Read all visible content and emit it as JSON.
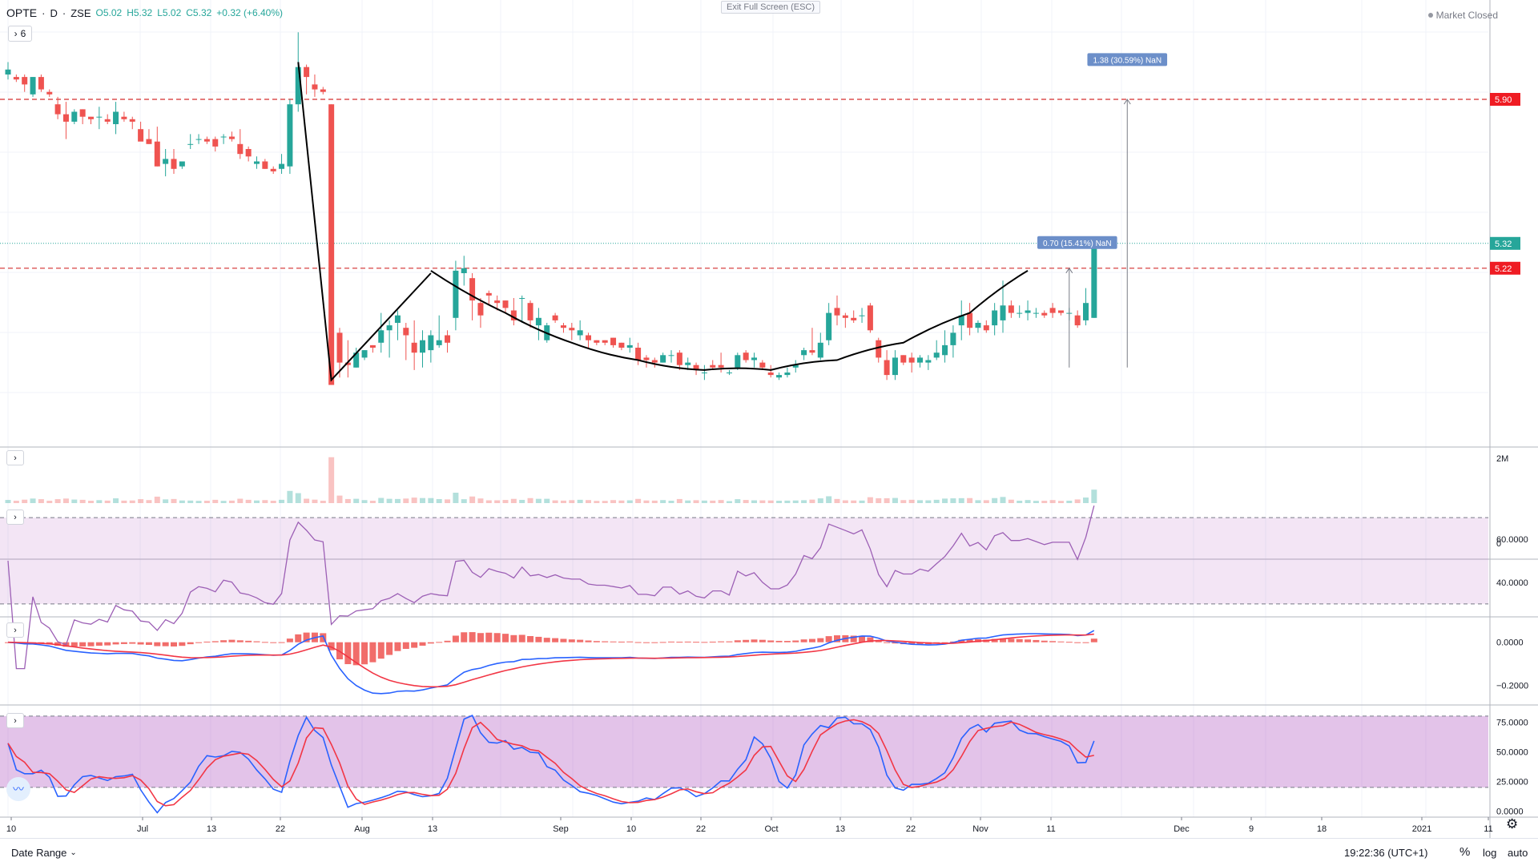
{
  "header": {
    "symbol": "OPTE",
    "interval": "D",
    "exchange": "ZSE",
    "open": "O5.02",
    "high": "H5.32",
    "low": "L5.02",
    "close": "C5.32",
    "change": "+0.32 (+6.40%)",
    "interval_box": "6",
    "exit_fullscreen": "Exit Full Screen (ESC)",
    "market_status": "Market Closed"
  },
  "colors": {
    "up": "#26a69a",
    "down": "#ef5350",
    "rsi": "#9c5fb5",
    "macd": "#2962ff",
    "signal": "#f23645"
  },
  "icons": [
    "chevron-right-icon",
    "chevron-down-icon",
    "settings-icon",
    "tradingview-logo-icon"
  ],
  "price_labels": {
    "level_high": "5.90",
    "current": "5.32",
    "level_mid": "5.22"
  },
  "measure_labels": {
    "big": "1.38 (30.59%) NaN",
    "small": "0.70 (15.41%) NaN"
  },
  "volume_axis": [
    "2M",
    "0"
  ],
  "rsi_axis": [
    "60.0000",
    "40.0000"
  ],
  "macd_axis": [
    "0.0000",
    "−0.2000"
  ],
  "stoch_axis": [
    "75.0000",
    "50.0000",
    "25.0000",
    "0.0000"
  ],
  "x_ticks": [
    "10",
    "Jul",
    "13",
    "22",
    "Aug",
    "13",
    "Sep",
    "10",
    "22",
    "Oct",
    "13",
    "22",
    "Nov",
    "11",
    "Dec",
    "9",
    "18",
    "2021",
    "11"
  ],
  "bottom": {
    "date_range": "Date Range",
    "clock": "19:22:36 (UTC+1)",
    "percent": "%",
    "log": "log",
    "auto": "auto"
  },
  "chart_data": [
    {
      "type": "candlestick",
      "title": "",
      "ylim": [
        4.5,
        6.3
      ],
      "reference_levels": [
        5.9,
        5.32,
        5.22
      ],
      "ohlc": [
        [
          6.0,
          6.05,
          5.98,
          6.02
        ],
        [
          5.99,
          6.0,
          5.97,
          5.98
        ],
        [
          5.99,
          6.0,
          5.93,
          5.96
        ],
        [
          5.92,
          5.99,
          5.91,
          5.99
        ],
        [
          5.99,
          6.0,
          5.93,
          5.94
        ],
        [
          5.93,
          5.94,
          5.91,
          5.92
        ],
        [
          5.88,
          5.91,
          5.82,
          5.84
        ],
        [
          5.84,
          5.89,
          5.74,
          5.81
        ],
        [
          5.81,
          5.86,
          5.8,
          5.85
        ],
        [
          5.86,
          5.86,
          5.8,
          5.83
        ],
        [
          5.83,
          5.83,
          5.8,
          5.82
        ],
        [
          5.83,
          5.87,
          5.78,
          5.83
        ],
        [
          5.82,
          5.84,
          5.8,
          5.81
        ],
        [
          5.8,
          5.89,
          5.76,
          5.85
        ],
        [
          5.83,
          5.85,
          5.81,
          5.82
        ],
        [
          5.82,
          5.83,
          5.78,
          5.81
        ],
        [
          5.78,
          5.81,
          5.74,
          5.73
        ],
        [
          5.74,
          5.78,
          5.72,
          5.72
        ],
        [
          5.73,
          5.79,
          5.63,
          5.63
        ],
        [
          5.64,
          5.7,
          5.59,
          5.66
        ],
        [
          5.66,
          5.7,
          5.6,
          5.62
        ],
        [
          5.63,
          5.65,
          5.62,
          5.65
        ],
        [
          5.72,
          5.76,
          5.7,
          5.72
        ],
        [
          5.74,
          5.76,
          5.72,
          5.74
        ],
        [
          5.74,
          5.75,
          5.72,
          5.73
        ],
        [
          5.74,
          5.75,
          5.69,
          5.71
        ],
        [
          5.75,
          5.76,
          5.72,
          5.75
        ],
        [
          5.75,
          5.77,
          5.73,
          5.74
        ],
        [
          5.72,
          5.78,
          5.66,
          5.68
        ],
        [
          5.7,
          5.71,
          5.65,
          5.67
        ],
        [
          5.64,
          5.67,
          5.62,
          5.65
        ],
        [
          5.65,
          5.66,
          5.62,
          5.62
        ],
        [
          5.62,
          5.63,
          5.6,
          5.61
        ],
        [
          5.62,
          5.68,
          5.6,
          5.64
        ],
        [
          5.63,
          5.9,
          5.6,
          5.88
        ],
        [
          5.88,
          6.17,
          5.85,
          6.03
        ],
        [
          6.03,
          6.04,
          5.92,
          5.99
        ],
        [
          5.96,
          6.0,
          5.91,
          5.94
        ],
        [
          5.94,
          5.95,
          5.92,
          5.93
        ],
        [
          5.88,
          5.88,
          4.76,
          4.75
        ],
        [
          4.96,
          4.98,
          4.78,
          4.84
        ],
        [
          4.84,
          4.93,
          4.78,
          4.83
        ],
        [
          4.82,
          4.9,
          4.82,
          4.88
        ],
        [
          4.86,
          4.89,
          4.85,
          4.89
        ],
        [
          4.91,
          4.91,
          4.88,
          4.9
        ],
        [
          4.92,
          5.04,
          4.88,
          4.97
        ],
        [
          4.97,
          5.01,
          4.86,
          4.99
        ],
        [
          5.0,
          5.05,
          4.93,
          5.03
        ],
        [
          4.98,
          5.0,
          4.85,
          4.95
        ],
        [
          4.92,
          5.01,
          4.81,
          4.88
        ],
        [
          4.88,
          4.97,
          4.82,
          4.93
        ],
        [
          4.89,
          4.97,
          4.84,
          4.95
        ],
        [
          4.91,
          5.03,
          4.9,
          4.93
        ],
        [
          4.95,
          4.97,
          4.88,
          4.92
        ],
        [
          5.02,
          5.25,
          4.97,
          5.21
        ],
        [
          5.2,
          5.27,
          5.15,
          5.22
        ],
        [
          5.18,
          5.2,
          5.01,
          5.09
        ],
        [
          5.08,
          5.1,
          4.98,
          5.03
        ],
        [
          5.12,
          5.13,
          5.07,
          5.11
        ],
        [
          5.09,
          5.11,
          5.05,
          5.08
        ],
        [
          5.09,
          5.09,
          5.04,
          5.06
        ],
        [
          5.05,
          5.1,
          4.99,
          5.01
        ],
        [
          5.1,
          5.11,
          5.0,
          5.1
        ],
        [
          5.08,
          5.09,
          4.98,
          5.01
        ],
        [
          4.99,
          5.06,
          4.93,
          5.02
        ],
        [
          4.93,
          5.0,
          4.92,
          4.99
        ],
        [
          5.03,
          5.04,
          5.0,
          5.01
        ],
        [
          4.99,
          5.0,
          4.96,
          4.98
        ],
        [
          4.98,
          5.0,
          4.93,
          4.97
        ],
        [
          4.95,
          5.01,
          4.93,
          4.97
        ],
        [
          4.95,
          4.96,
          4.9,
          4.93
        ],
        [
          4.93,
          4.93,
          4.91,
          4.92
        ],
        [
          4.93,
          4.93,
          4.91,
          4.92
        ],
        [
          4.94,
          4.94,
          4.9,
          4.91
        ],
        [
          4.92,
          4.92,
          4.89,
          4.9
        ],
        [
          4.9,
          4.94,
          4.88,
          4.91
        ],
        [
          4.9,
          4.92,
          4.83,
          4.85
        ],
        [
          4.86,
          4.87,
          4.82,
          4.85
        ],
        [
          4.85,
          4.86,
          4.82,
          4.84
        ],
        [
          4.84,
          4.88,
          4.84,
          4.87
        ],
        [
          4.87,
          4.89,
          4.84,
          4.87
        ],
        [
          4.88,
          4.89,
          4.81,
          4.83
        ],
        [
          4.83,
          4.86,
          4.81,
          4.84
        ],
        [
          4.83,
          4.84,
          4.79,
          4.81
        ],
        [
          4.8,
          4.83,
          4.77,
          4.8
        ],
        [
          4.83,
          4.85,
          4.81,
          4.82
        ],
        [
          4.83,
          4.88,
          4.8,
          4.82
        ],
        [
          4.8,
          4.81,
          4.79,
          4.8
        ],
        [
          4.82,
          4.88,
          4.81,
          4.87
        ],
        [
          4.88,
          4.89,
          4.84,
          4.85
        ],
        [
          4.85,
          4.88,
          4.82,
          4.86
        ],
        [
          4.84,
          4.85,
          4.81,
          4.82
        ],
        [
          4.8,
          4.83,
          4.78,
          4.79
        ],
        [
          4.78,
          4.8,
          4.77,
          4.79
        ],
        [
          4.79,
          4.82,
          4.78,
          4.8
        ],
        [
          4.82,
          4.85,
          4.8,
          4.83
        ],
        [
          4.87,
          4.9,
          4.85,
          4.89
        ],
        [
          4.89,
          4.98,
          4.87,
          4.88
        ],
        [
          4.86,
          4.96,
          4.85,
          4.92
        ],
        [
          4.93,
          5.08,
          4.91,
          5.04
        ],
        [
          5.06,
          5.11,
          4.99,
          5.03
        ],
        [
          5.03,
          5.04,
          4.98,
          5.02
        ],
        [
          5.02,
          5.05,
          5.0,
          5.01
        ],
        [
          5.03,
          5.06,
          5.0,
          5.03
        ],
        [
          5.07,
          5.08,
          4.96,
          4.97
        ],
        [
          4.93,
          4.94,
          4.84,
          4.86
        ],
        [
          4.85,
          4.89,
          4.77,
          4.79
        ],
        [
          4.79,
          4.89,
          4.77,
          4.86
        ],
        [
          4.87,
          4.87,
          4.83,
          4.84
        ],
        [
          4.86,
          4.88,
          4.8,
          4.84
        ],
        [
          4.84,
          4.87,
          4.82,
          4.86
        ],
        [
          4.84,
          4.87,
          4.81,
          4.85
        ],
        [
          4.86,
          4.93,
          4.85,
          4.88
        ],
        [
          4.87,
          4.97,
          4.84,
          4.91
        ],
        [
          4.91,
          4.99,
          4.86,
          4.96
        ],
        [
          4.99,
          5.09,
          4.93,
          5.03
        ],
        [
          5.04,
          5.08,
          4.95,
          4.98
        ],
        [
          4.98,
          5.01,
          4.96,
          5.0
        ],
        [
          4.99,
          5.01,
          4.96,
          4.97
        ],
        [
          4.99,
          5.08,
          4.95,
          5.05
        ],
        [
          5.01,
          5.17,
          4.96,
          5.07
        ],
        [
          5.07,
          5.09,
          5.02,
          5.04
        ],
        [
          5.04,
          5.07,
          5.02,
          5.04
        ],
        [
          5.04,
          5.09,
          5.01,
          5.05
        ],
        [
          5.04,
          5.06,
          5.02,
          5.04
        ],
        [
          5.04,
          5.05,
          5.02,
          5.03
        ],
        [
          5.06,
          5.08,
          5.02,
          5.04
        ],
        [
          5.05,
          5.05,
          5.03,
          5.04
        ],
        [
          5.04,
          5.06,
          5.01,
          5.04
        ],
        [
          5.03,
          5.05,
          4.98,
          4.99
        ],
        [
          5.01,
          5.14,
          4.99,
          5.08
        ],
        [
          5.02,
          5.32,
          5.02,
          5.32
        ]
      ],
      "annotations": [
        "cup-and-handle curve",
        "1.38 (30.59%) NaN",
        "0.70 (15.41%) NaN"
      ]
    },
    {
      "type": "bar",
      "name": "Volume",
      "ylim": [
        0,
        2000000
      ]
    },
    {
      "type": "line",
      "name": "RSI",
      "ylim": [
        24,
        76
      ],
      "bands": [
        30,
        70
      ]
    },
    {
      "type": "line",
      "name": "MACD",
      "ylim": [
        -0.29,
        0.11
      ]
    },
    {
      "type": "line",
      "name": "Stochastic",
      "ylim": [
        -5,
        88
      ],
      "bands": [
        20,
        80
      ]
    }
  ]
}
